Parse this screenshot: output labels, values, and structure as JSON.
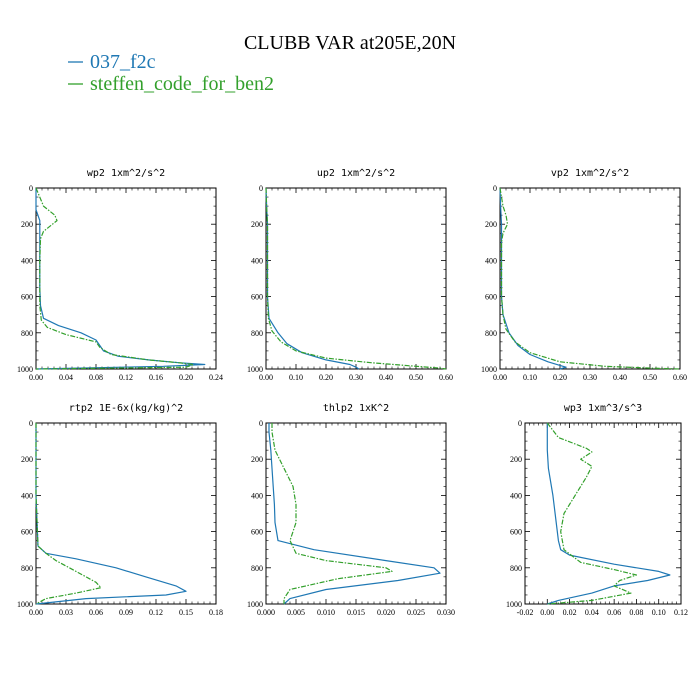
{
  "title": "CLUBB VAR at205E,20N",
  "colors": {
    "s1": "#1f78b4",
    "s2": "#33a02c"
  },
  "legend": [
    {
      "label": "037_f2c",
      "color": "#1f78b4",
      "dash": false
    },
    {
      "label": "steffen_code_for_ben2",
      "color": "#33a02c",
      "dash": true
    }
  ],
  "chart_data": [
    {
      "type": "line",
      "title": "wp2  1xm^2/s^2",
      "xlim": [
        0,
        0.24
      ],
      "ylim": [
        1000,
        0
      ],
      "xticks": [
        "0.00",
        "0.04",
        "0.08",
        "0.12",
        "0.16",
        "0.20",
        "0.24"
      ],
      "yticks": [
        "0",
        "200",
        "400",
        "600",
        "800",
        "1000"
      ],
      "series": [
        {
          "name": "037_f2c",
          "x": [
            0.0,
            0.0,
            0.005,
            0.005,
            0.005,
            0.005,
            0.005,
            0.006,
            0.01,
            0.03,
            0.06,
            0.08,
            0.09,
            0.11,
            0.15,
            0.19,
            0.225,
            0.17,
            0.0
          ],
          "y": [
            0,
            120,
            180,
            250,
            350,
            450,
            550,
            650,
            720,
            760,
            800,
            840,
            900,
            930,
            950,
            965,
            975,
            985,
            1000
          ]
        },
        {
          "name": "steffen_code_for_ben2",
          "x": [
            0.0,
            0.01,
            0.025,
            0.028,
            0.01,
            0.006,
            0.005,
            0.005,
            0.005,
            0.007,
            0.015,
            0.04,
            0.08,
            0.085,
            0.1,
            0.15,
            0.19,
            0.21,
            0.2,
            0.0
          ],
          "y": [
            0,
            100,
            150,
            180,
            240,
            280,
            400,
            550,
            650,
            730,
            770,
            810,
            850,
            880,
            920,
            950,
            965,
            975,
            990,
            1000
          ]
        }
      ]
    },
    {
      "type": "line",
      "title": "up2  1xm^2/s^2",
      "xlim": [
        0,
        0.6
      ],
      "ylim": [
        1000,
        0
      ],
      "xticks": [
        "0.00",
        "0.10",
        "0.20",
        "0.30",
        "0.40",
        "0.50",
        "0.60"
      ],
      "yticks": [
        "0",
        "200",
        "400",
        "600",
        "800",
        "1000"
      ],
      "series": [
        {
          "name": "037_f2c",
          "x": [
            0.0,
            0.002,
            0.005,
            0.005,
            0.005,
            0.01,
            0.04,
            0.07,
            0.12,
            0.2,
            0.28,
            0.3,
            0.31
          ],
          "y": [
            0,
            100,
            200,
            400,
            600,
            720,
            800,
            860,
            910,
            950,
            975,
            990,
            1000
          ]
        },
        {
          "name": "steffen_code_for_ben2",
          "x": [
            0.0,
            0.002,
            0.005,
            0.005,
            0.005,
            0.008,
            0.02,
            0.05,
            0.1,
            0.2,
            0.35,
            0.5,
            0.58,
            0.6
          ],
          "y": [
            0,
            100,
            200,
            400,
            600,
            720,
            790,
            850,
            900,
            940,
            965,
            985,
            995,
            1000
          ]
        }
      ]
    },
    {
      "type": "line",
      "title": "vp2  1xm^2/s^2",
      "xlim": [
        0,
        0.6
      ],
      "ylim": [
        1000,
        0
      ],
      "xticks": [
        "0.00",
        "0.10",
        "0.20",
        "0.30",
        "0.40",
        "0.50",
        "0.60"
      ],
      "yticks": [
        "0",
        "200",
        "400",
        "600",
        "800",
        "1000"
      ],
      "series": [
        {
          "name": "037_f2c",
          "x": [
            0.0,
            0.002,
            0.005,
            0.005,
            0.005,
            0.01,
            0.03,
            0.06,
            0.1,
            0.16,
            0.2,
            0.22,
            0.2
          ],
          "y": [
            0,
            100,
            200,
            400,
            600,
            700,
            800,
            870,
            920,
            960,
            980,
            990,
            1000
          ]
        },
        {
          "name": "steffen_code_for_ben2",
          "x": [
            0.0,
            0.01,
            0.02,
            0.025,
            0.01,
            0.005,
            0.005,
            0.01,
            0.02,
            0.05,
            0.1,
            0.2,
            0.35,
            0.5,
            0.6
          ],
          "y": [
            0,
            100,
            150,
            200,
            250,
            300,
            600,
            700,
            780,
            850,
            910,
            960,
            985,
            995,
            1000
          ]
        }
      ]
    },
    {
      "type": "line",
      "title": "rtp2  1E-6x(kg/kg)^2",
      "xlim": [
        0,
        0.18
      ],
      "ylim": [
        1000,
        0
      ],
      "xticks": [
        "0.00",
        "0.03",
        "0.06",
        "0.09",
        "0.12",
        "0.15",
        "0.18"
      ],
      "yticks": [
        "0",
        "200",
        "400",
        "600",
        "800",
        "1000"
      ],
      "series": [
        {
          "name": "037_f2c",
          "x": [
            0.0,
            0.0,
            0.002,
            0.01,
            0.04,
            0.08,
            0.11,
            0.14,
            0.15,
            0.13,
            0.05,
            0.0
          ],
          "y": [
            0,
            400,
            680,
            720,
            750,
            800,
            850,
            900,
            930,
            950,
            970,
            1000
          ]
        },
        {
          "name": "steffen_code_for_ben2",
          "x": [
            0.0,
            0.0,
            0.002,
            0.01,
            0.02,
            0.04,
            0.06,
            0.065,
            0.04,
            0.01,
            0.0
          ],
          "y": [
            0,
            400,
            680,
            720,
            760,
            820,
            880,
            910,
            940,
            970,
            1000
          ]
        }
      ]
    },
    {
      "type": "line",
      "title": "thlp2  1xK^2",
      "xlim": [
        0,
        0.03
      ],
      "ylim": [
        1000,
        0
      ],
      "xticks": [
        "0.000",
        "0.005",
        "0.010",
        "0.015",
        "0.020",
        "0.025",
        "0.030"
      ],
      "yticks": [
        "0",
        "200",
        "400",
        "600",
        "800",
        "1000"
      ],
      "series": [
        {
          "name": "037_f2c",
          "x": [
            0.0005,
            0.0005,
            0.0008,
            0.001,
            0.0012,
            0.0014,
            0.0015,
            0.002,
            0.008,
            0.02,
            0.028,
            0.029,
            0.022,
            0.01,
            0.004,
            0.003
          ],
          "y": [
            0,
            50,
            150,
            250,
            350,
            450,
            550,
            650,
            700,
            760,
            800,
            830,
            870,
            920,
            970,
            1000
          ]
        },
        {
          "name": "steffen_code_for_ben2",
          "x": [
            0.001,
            0.001,
            0.0015,
            0.003,
            0.0045,
            0.005,
            0.005,
            0.004,
            0.005,
            0.01,
            0.02,
            0.021,
            0.012,
            0.004,
            0.003,
            0.003
          ],
          "y": [
            0,
            50,
            150,
            250,
            350,
            450,
            550,
            650,
            720,
            760,
            800,
            820,
            860,
            920,
            970,
            1000
          ]
        }
      ]
    },
    {
      "type": "line",
      "title": "wp3  1xm^3/s^3",
      "xlim": [
        -0.02,
        0.12
      ],
      "ylim": [
        1000,
        0
      ],
      "xticks": [
        "-0.02",
        "0.00",
        "0.02",
        "0.04",
        "0.06",
        "0.08",
        "0.10",
        "0.12"
      ],
      "yticks": [
        "0",
        "200",
        "400",
        "600",
        "800",
        "1000"
      ],
      "series": [
        {
          "name": "037_f2c",
          "x": [
            0.0,
            0.0,
            0.001,
            0.005,
            0.008,
            0.01,
            0.012,
            0.02,
            0.06,
            0.1,
            0.11,
            0.09,
            0.06,
            0.04,
            0.01,
            0.0
          ],
          "y": [
            0,
            150,
            250,
            400,
            550,
            650,
            700,
            730,
            780,
            820,
            840,
            870,
            900,
            940,
            980,
            1000
          ]
        },
        {
          "name": "steffen_code_for_ben2",
          "x": [
            0.0,
            0.01,
            0.035,
            0.04,
            0.03,
            0.04,
            0.035,
            0.025,
            0.015,
            0.012,
            0.015,
            0.03,
            0.06,
            0.08,
            0.065,
            0.06,
            0.075,
            0.04,
            0.0
          ],
          "y": [
            0,
            80,
            140,
            160,
            200,
            240,
            300,
            400,
            500,
            600,
            700,
            770,
            810,
            840,
            870,
            900,
            940,
            980,
            1000
          ]
        }
      ]
    }
  ]
}
